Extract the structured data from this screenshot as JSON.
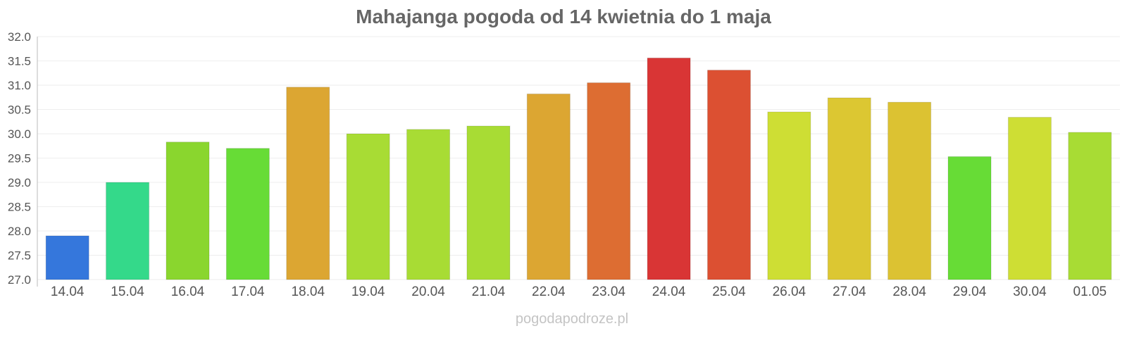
{
  "chart_data": {
    "type": "bar",
    "title": "Mahajanga pogoda od 14 kwietnia do 1 maja",
    "xlabel": "",
    "ylabel": "",
    "categories": [
      "14.04",
      "15.04",
      "16.04",
      "17.04",
      "18.04",
      "19.04",
      "20.04",
      "21.04",
      "22.04",
      "23.04",
      "24.04",
      "25.04",
      "26.04",
      "27.04",
      "28.04",
      "29.04",
      "30.04",
      "01.05"
    ],
    "values": [
      27.9,
      29.0,
      29.83,
      29.7,
      30.96,
      30.0,
      30.09,
      30.16,
      30.82,
      31.05,
      31.56,
      31.31,
      30.45,
      30.74,
      30.65,
      29.53,
      30.34,
      30.03
    ],
    "colors": [
      "#3577dc",
      "#34d98a",
      "#8ad62e",
      "#67dc36",
      "#dca632",
      "#a8dc34",
      "#a8dc34",
      "#a8dc34",
      "#dca632",
      "#dd6d32",
      "#d93535",
      "#dc5032",
      "#cede34",
      "#dcc732",
      "#dcc232",
      "#67dc36",
      "#cede34",
      "#a8dc34"
    ],
    "ylim": [
      27.0,
      32.0
    ],
    "yticks": [
      "27.0",
      "27.5",
      "28.0",
      "28.5",
      "29.0",
      "29.5",
      "30.0",
      "30.5",
      "31.0",
      "31.5",
      "32.0"
    ],
    "grid": true,
    "legend": "none"
  },
  "watermark": "pogodapodroze.pl"
}
